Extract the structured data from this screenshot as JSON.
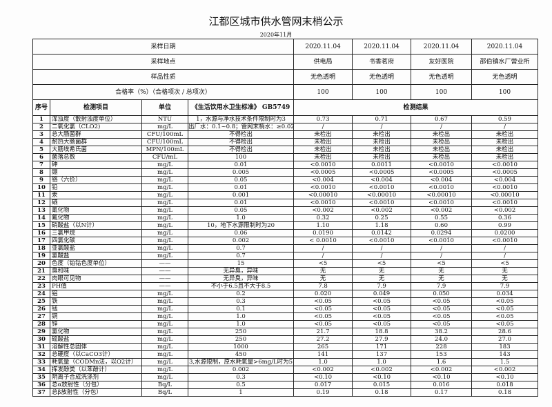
{
  "title": "江都区城市供水管网末梢公示",
  "month": "2020年11月",
  "header_rows": [
    {
      "label": "采样日期",
      "values": [
        "2020.11.04",
        "2020.11.04",
        "2020.11.04",
        "2020.11.04"
      ]
    },
    {
      "label": "采样地点",
      "values": [
        "供电局",
        "书香茗府",
        "友好医院",
        "邵伯镇水厂营业所"
      ]
    },
    {
      "label": "样品性质",
      "values": [
        "无色透明",
        "无色透明",
        "无色透明",
        "无色透明"
      ]
    },
    {
      "label": "合格率（%）（合格项次 / 总项次）",
      "values": [
        "100",
        "100",
        "100",
        "100"
      ]
    }
  ],
  "columns": {
    "no": "序号",
    "item": "检测项目",
    "unit": "单位",
    "standard": "《生活饮用水卫生标准》 GB5749",
    "results": "检测结果"
  },
  "rows": [
    [
      "1",
      "浑浊度（散射浊度单位）",
      "NTU",
      "1，水源与净水技术条件限制时为3",
      "0.73",
      "0.71",
      "0.67",
      "0.59"
    ],
    [
      "2",
      "二氧化氯（CLO2)",
      "mg/L",
      "出厂水：0.1~0.8；管网末梢水：≥0.02",
      "/",
      "/",
      "/",
      "/"
    ],
    [
      "3",
      "总大肠菌群",
      "CFU/100mL",
      "不得检出",
      "未检出",
      "未检出",
      "未检出",
      "未检出"
    ],
    [
      "4",
      "耐热大肠菌群",
      "CFU/100mL",
      "不得检出",
      "未检出",
      "未检出",
      "未检出",
      "未检出"
    ],
    [
      "5",
      "大肠埃希氏菌",
      "MPN/100mL",
      "不得检出",
      "未检出",
      "未检出",
      "未检出",
      "未检出"
    ],
    [
      "6",
      "菌落总数",
      "CFU/mL",
      "100",
      "未检出",
      "未检出",
      "未检出",
      "未检出"
    ],
    [
      "7",
      "砷",
      "mg/L",
      "0.01",
      "<0.0010",
      "0.0011",
      "<0.0010",
      "<0.0010"
    ],
    [
      "8",
      "镉",
      "mg/L",
      "0.005",
      "<0.0005",
      "<0.0005",
      "<0.0005",
      "<0.0005"
    ],
    [
      "9",
      "铬（六价）",
      "mg/L",
      "0.05",
      "<0.004",
      "<0.004",
      "<0.004",
      "<0.004"
    ],
    [
      "10",
      "铅",
      "mg/L",
      "0.01",
      "<0.0010",
      "<0.0010",
      "<0.0010",
      "<0.0010"
    ],
    [
      "11",
      "汞",
      "mg/L",
      "0.001",
      "<0.00010",
      "<0.00010",
      "<0.00010",
      "<0.00010"
    ],
    [
      "12",
      "硒",
      "mg/L",
      "0.01",
      "<0.0010",
      "<0.0010",
      "<0.0010",
      "<0.0010"
    ],
    [
      "13",
      "氰化物",
      "mg/L",
      "0.05",
      "<0.002",
      "<0.002",
      "<0.002",
      "<0.002"
    ],
    [
      "14",
      "氟化物",
      "mg/L",
      "1.0",
      "0.32",
      "0.25",
      "0.55",
      "0.36"
    ],
    [
      "15",
      "硝酸盐（以N计）",
      "mg/L",
      "10，地下水源限制时为20",
      "1.10",
      "1.18",
      "0.60",
      "0.99"
    ],
    [
      "16",
      "三氯甲烷",
      "mg/L",
      "0.06",
      "0.0190",
      "0.0142",
      "0.0294",
      "0.0200"
    ],
    [
      "17",
      "四氯化碳",
      "mg/L",
      "0.002",
      "< 0.0010",
      "<0.0010",
      "<0.0010",
      "<0.0010"
    ],
    [
      "18",
      "亚氯酸盐",
      "mg/L",
      "0.7",
      "/",
      "/",
      "/",
      "/"
    ],
    [
      "19",
      "氯酸盐",
      "mg/L",
      "0.7",
      "/",
      "/",
      "/",
      "/"
    ],
    [
      "20",
      "色度（铂钴色度单位）",
      "——",
      "15",
      "<5",
      "<5",
      "<5",
      "<5"
    ],
    [
      "21",
      "臭和味",
      "——",
      "无异臭，异味",
      "无",
      "无",
      "无",
      "无"
    ],
    [
      "22",
      "肉眼可见物",
      "——",
      "无异臭，异味",
      "无",
      "无",
      "无",
      "无"
    ],
    [
      "23",
      "PH值",
      "——",
      "不小于6.5且不大于8.5",
      "7.8",
      "7.9",
      "7.9",
      "7.9"
    ],
    [
      "24",
      "铝",
      "mg/L",
      "0.2",
      "0.020",
      "0.049",
      "0.050",
      "0.034"
    ],
    [
      "25",
      "铁",
      "mg/L",
      "0.3",
      "<0.05",
      "<0.05",
      "<0.05",
      "<0.05"
    ],
    [
      "26",
      "锰",
      "mg/L",
      "0.1",
      "<0.05",
      "<0.05",
      "<0.05",
      "<0.05"
    ],
    [
      "27",
      "铜",
      "mg/L",
      "1.0",
      "<0.05",
      "<0.05",
      "<0.05",
      "<0.05"
    ],
    [
      "28",
      "锌",
      "mg/L",
      "1.0",
      "<0.05",
      "<0.05",
      "<0.05",
      "<0.05"
    ],
    [
      "29",
      "氯化物",
      "mg/L",
      "250",
      "21.7",
      "18.8",
      "38.2",
      "28.6"
    ],
    [
      "30",
      "硫酸盐",
      "mg/L",
      "250",
      "27.2",
      "27.9",
      "24.0",
      "27.0"
    ],
    [
      "31",
      "溶解性总固体",
      "mg/L",
      "1000",
      "265",
      "171",
      "228",
      "183"
    ],
    [
      "32",
      "总硬度（以CaCO3计）",
      "mg/L",
      "450",
      "141",
      "137",
      "153",
      "143"
    ],
    [
      "33",
      "耗氧量（CODMn法，以O2计）",
      "mg/L",
      "3,水源限制，原水耗氧量>6mg/L时为5",
      "1.0",
      "1.0",
      "1.6",
      "1.5"
    ],
    [
      "34",
      "挥发酚类（以苯酚计）",
      "mg/L",
      "0.002",
      "<0.002",
      "<0.002",
      "<0.002",
      "<0.002"
    ],
    [
      "35",
      "阴离子合成洗涤剂",
      "mg/L",
      "0.3",
      "<0.10",
      "<0.10",
      "<0.10",
      "<0.10"
    ],
    [
      "36",
      "总α放射性（分包）",
      "Bq/L",
      "0.5",
      "0.017",
      "0.015",
      "0.016",
      "0.018"
    ],
    [
      "37",
      "总β放射性（分包）",
      "Bq/L",
      "1",
      "0.19",
      "0.18",
      "0.17",
      "0.18"
    ]
  ]
}
